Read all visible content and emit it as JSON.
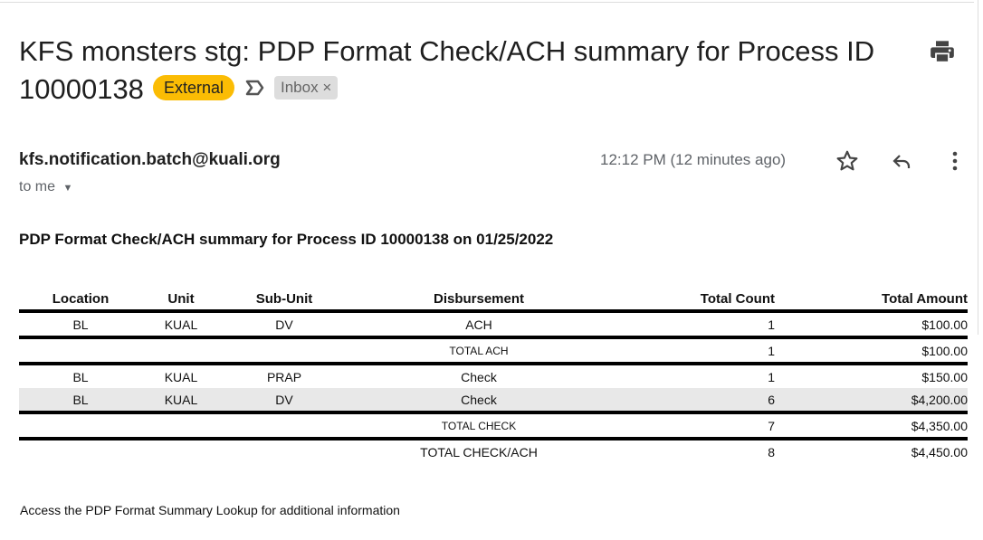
{
  "subject": "KFS monsters stg: PDP Format Check/ACH summary for Process ID 10000138",
  "badge": "External",
  "label": "Inbox",
  "label_close": "×",
  "sender": "kfs.notification.batch@kuali.org",
  "to": "to me",
  "time": "12:12 PM (12 minutes ago)",
  "heading": "PDP Format Check/ACH summary for Process ID 10000138 on 01/25/2022",
  "table": {
    "headers": [
      "Location",
      "Unit",
      "Sub-Unit",
      "Disbursement",
      "Total Count",
      "Total Amount"
    ],
    "rows": [
      [
        "BL",
        "KUAL",
        "DV",
        "ACH",
        "1",
        "$100.00"
      ],
      [
        "",
        "",
        "",
        "TOTAL ACH",
        "1",
        "$100.00"
      ],
      [
        "BL",
        "KUAL",
        "PRAP",
        "Check",
        "1",
        "$150.00"
      ],
      [
        "BL",
        "KUAL",
        "DV",
        "Check",
        "6",
        "$4,200.00"
      ],
      [
        "",
        "",
        "",
        "TOTAL CHECK",
        "7",
        "$4,350.00"
      ],
      [
        "",
        "",
        "",
        "TOTAL CHECK/ACH",
        "8",
        "$4,450.00"
      ]
    ]
  },
  "footer": "Access the PDP Format Summary Lookup for additional information",
  "colors": {
    "badge": "#fbbc04",
    "label_bg": "#dddddd"
  }
}
